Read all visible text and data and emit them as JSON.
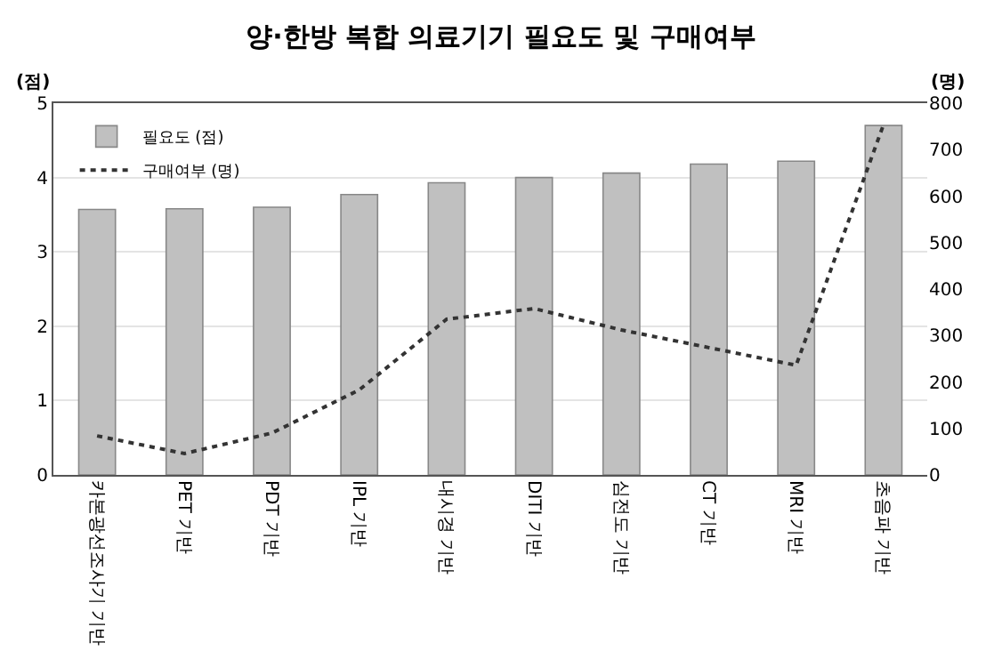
{
  "chart_data": {
    "type": "bar",
    "title": "양·한방 복합 의료기기 필요도 및 구매여부",
    "ylabel": "(점)",
    "y2label": "(명)",
    "categories": [
      "카본광선조사기 기반",
      "PET 기반",
      "PDT 기반",
      "IPL 기반",
      "내시경 기반",
      "DITI 기반",
      "심전도 기반",
      "CT 기반",
      "MRI 기반",
      "초음파 기반"
    ],
    "series": [
      {
        "name": "필요도 (점)",
        "color": "#c0c0c0",
        "values": [
          3.57,
          3.58,
          3.6,
          3.77,
          3.93,
          4.0,
          4.06,
          4.18,
          4.22,
          4.7
        ]
      },
      {
        "name": "구매여부 (명)",
        "type": "line",
        "axis": "y2",
        "color": "#333333",
        "line_style": "dotted",
        "values": [
          84,
          46,
          90,
          183,
          335,
          358,
          312,
          274,
          236,
          754
        ]
      }
    ],
    "ylim": [
      0,
      5
    ],
    "yticks": [
      0,
      1,
      2,
      3,
      4,
      5
    ],
    "y2lim": [
      0,
      800
    ],
    "y2ticks": [
      0,
      100,
      200,
      300,
      400,
      500,
      600,
      700,
      800
    ],
    "grid": "y",
    "legend": "top left",
    "marker": "none"
  }
}
